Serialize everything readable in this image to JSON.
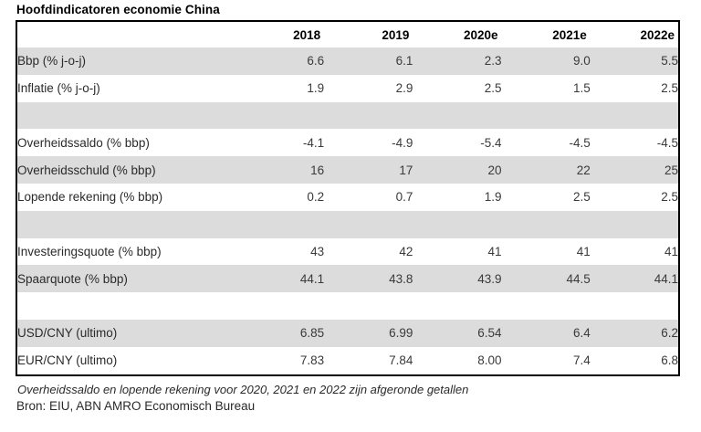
{
  "title": "Hoofdindicatoren economie China",
  "chart_data": {
    "type": "table",
    "title": "Hoofdindicatoren economie China",
    "columns": [
      "",
      "2018",
      "2019",
      "2020e",
      "2021e",
      "2022e"
    ],
    "rows": [
      {
        "label": "Bbp (% j-o-j)",
        "values": [
          "6.6",
          "6.1",
          "2.3",
          "9.0",
          "5.5"
        ],
        "shaded": true
      },
      {
        "label": "Inflatie (% j-o-j)",
        "values": [
          "1.9",
          "2.9",
          "2.5",
          "1.5",
          "2.5"
        ],
        "shaded": false
      },
      {
        "label": "",
        "values": [
          "",
          "",
          "",
          "",
          ""
        ],
        "shaded": true
      },
      {
        "label": "Overheidssaldo (% bbp)",
        "values": [
          "-4.1",
          "-4.9",
          "-5.4",
          "-4.5",
          "-4.5"
        ],
        "shaded": false
      },
      {
        "label": "Overheidsschuld (% bbp)",
        "values": [
          "16",
          "17",
          "20",
          "22",
          "25"
        ],
        "shaded": true
      },
      {
        "label": "Lopende rekening (% bbp)",
        "values": [
          "0.2",
          "0.7",
          "1.9",
          "2.5",
          "2.5"
        ],
        "shaded": false
      },
      {
        "label": "",
        "values": [
          "",
          "",
          "",
          "",
          ""
        ],
        "shaded": true
      },
      {
        "label": "Investeringsquote (% bbp)",
        "values": [
          "43",
          "42",
          "41",
          "41",
          "41"
        ],
        "shaded": false
      },
      {
        "label": "Spaarquote (% bbp)",
        "values": [
          "44.1",
          "43.8",
          "43.9",
          "44.5",
          "44.1"
        ],
        "shaded": true
      },
      {
        "label": "",
        "values": [
          "",
          "",
          "",
          "",
          ""
        ],
        "shaded": false
      },
      {
        "label": "USD/CNY (ultimo)",
        "values": [
          "6.85",
          "6.99",
          "6.54",
          "6.4",
          "6.2"
        ],
        "shaded": true
      },
      {
        "label": "EUR/CNY (ultimo)",
        "values": [
          "7.83",
          "7.84",
          "8.00",
          "7.4",
          "6.8"
        ],
        "shaded": false
      }
    ],
    "footnote": "Overheidssaldo en lopende rekening voor 2020, 2021 en 2022 zijn afgeronde getallen",
    "source": "Bron: EIU, ABN AMRO Economisch Bureau"
  },
  "colors": {
    "row_shade": "#dcdcdc",
    "table_border": "#000000",
    "text": "#2a2a2a"
  }
}
